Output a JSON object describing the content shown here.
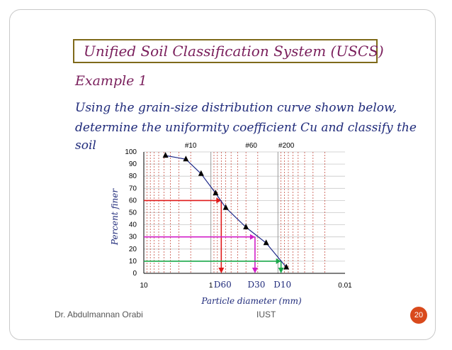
{
  "slide": {
    "title": "Unified Soil Classification System (USCS)",
    "example_heading": "Example 1",
    "body_lines": [
      "Using the grain-size distribution curve shown below,",
      "determine the uniformity coefficient Cu and classify the",
      "soil"
    ]
  },
  "chart_data": {
    "type": "line",
    "xlabel": "Particle diameter (mm)",
    "ylabel": "Percent finer",
    "xscale": "log",
    "xdirection": "decreasing",
    "xlim": [
      10,
      0.01
    ],
    "ylim": [
      0,
      100
    ],
    "y_ticks": [
      0,
      10,
      20,
      30,
      40,
      50,
      60,
      70,
      80,
      90,
      100
    ],
    "x_tick_labels": [
      "10",
      "1",
      "0.01"
    ],
    "x_tick_values": [
      10,
      1,
      0.01
    ],
    "sieve_labels": [
      {
        "label": "#10",
        "x": 2.0
      },
      {
        "label": "#60",
        "x": 0.25
      },
      {
        "label": "#200",
        "x": 0.075
      }
    ],
    "series": [
      {
        "x": [
          4.75,
          2.36,
          1.4,
          0.85,
          0.6,
          0.3,
          0.15,
          0.075
        ],
        "y": [
          97,
          94,
          82,
          66,
          54,
          38,
          25,
          5
        ]
      }
    ],
    "markers": [
      {
        "label": "D60",
        "x": 0.7,
        "y": 60,
        "color": "#e01a1a"
      },
      {
        "label": "D30",
        "x": 0.22,
        "y": 30,
        "color": "#d11ec8"
      },
      {
        "label": "D10",
        "x": 0.09,
        "y": 10,
        "color": "#1aa84a"
      }
    ],
    "grid": true
  },
  "footer": {
    "author": "Dr. Abdulmannan Orabi",
    "institution": "IUST",
    "page_number": "20"
  }
}
